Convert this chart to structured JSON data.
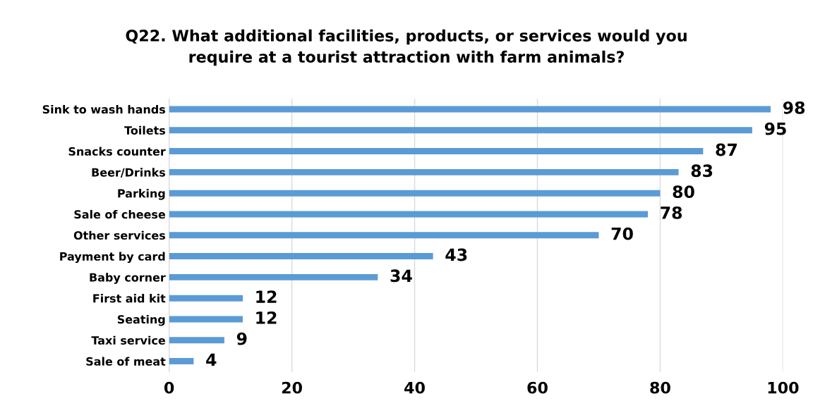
{
  "chart_data": {
    "type": "bar",
    "orientation": "horizontal",
    "title": "Q22. What additional facilities, products, or services would you\nrequire at a tourist attraction with farm animals?",
    "categories": [
      "Sink to wash hands",
      "Toilets",
      "Snacks counter",
      "Beer/Drinks",
      "Parking",
      "Sale of cheese",
      "Other services",
      "Payment by card",
      "Baby corner",
      "First aid kit",
      "Seating",
      "Taxi service",
      "Sale of meat"
    ],
    "values": [
      98,
      95,
      87,
      83,
      80,
      78,
      70,
      43,
      34,
      12,
      12,
      9,
      4
    ],
    "color": "#5b9bd5",
    "xlim": [
      0,
      100
    ],
    "xticks": [
      0,
      20,
      40,
      60,
      80,
      100
    ],
    "grid": "x",
    "data_labels": true
  }
}
